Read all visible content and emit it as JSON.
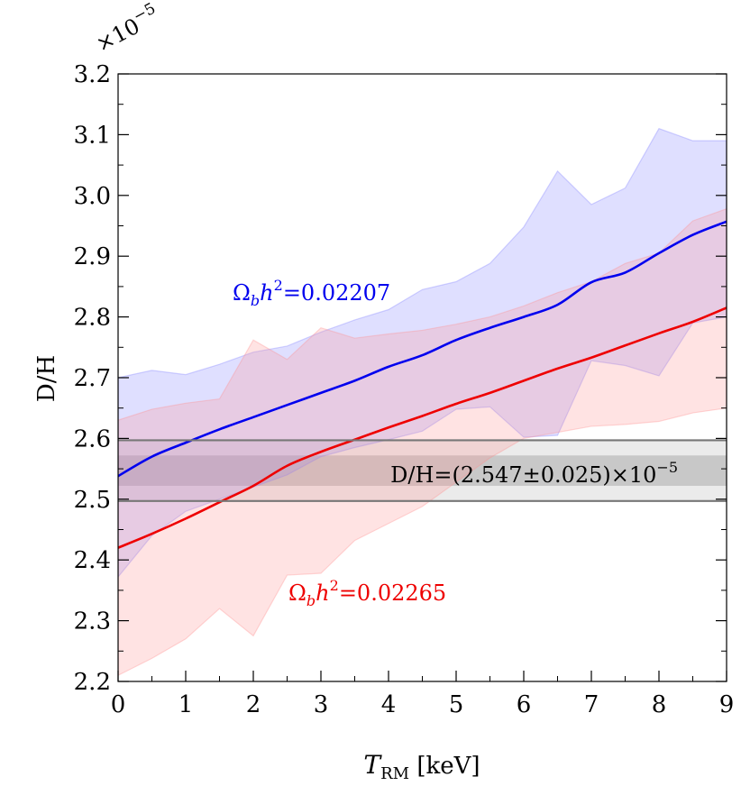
{
  "chart_data": {
    "type": "line",
    "title": "",
    "xlabel": {
      "main": "T",
      "sub": "RM",
      "unit": " [keV]"
    },
    "ylabel": "D/H",
    "multiplier": {
      "base": "×10",
      "exp": "−5"
    },
    "xlim": [
      0,
      9
    ],
    "ylim": [
      2.2,
      3.2
    ],
    "x_ticks": [
      0,
      1,
      2,
      3,
      4,
      5,
      6,
      7,
      8,
      9
    ],
    "x_tick_labels": [
      "0",
      "1",
      "2",
      "3",
      "4",
      "5",
      "6",
      "7",
      "8",
      "9"
    ],
    "y_ticks": [
      2.2,
      2.3,
      2.4,
      2.5,
      2.6,
      2.7,
      2.8,
      2.9,
      3.0,
      3.1,
      3.2
    ],
    "y_tick_labels": [
      "2.2",
      "2.3",
      "2.4",
      "2.5",
      "2.6",
      "2.7",
      "2.8",
      "2.9",
      "3.0",
      "3.1",
      "3.2"
    ],
    "series": [
      {
        "name": "Ω_b h²=0.02207",
        "label_prefix": "Ω",
        "label_sub": "b",
        "label_h": "h",
        "label_sup": "2",
        "label_value": "=0.02207",
        "color": "#0000ee",
        "band_color": "#8080ff",
        "x": [
          0,
          0.5,
          1,
          1.5,
          2,
          2.5,
          3,
          3.5,
          4,
          4.5,
          5,
          5.5,
          6,
          6.5,
          7,
          7.5,
          8,
          8.5,
          9
        ],
        "values": [
          2.538,
          2.57,
          2.593,
          2.615,
          2.635,
          2.655,
          2.675,
          2.695,
          2.718,
          2.737,
          2.762,
          2.782,
          2.8,
          2.82,
          2.857,
          2.873,
          2.905,
          2.935,
          2.957
        ],
        "upper": [
          2.7,
          2.712,
          2.705,
          2.722,
          2.742,
          2.752,
          2.775,
          2.795,
          2.812,
          2.845,
          2.858,
          2.888,
          2.948,
          3.04,
          2.985,
          3.012,
          3.11,
          3.09,
          3.09
        ],
        "lower": [
          2.372,
          2.44,
          2.48,
          2.5,
          2.52,
          2.54,
          2.57,
          2.585,
          2.598,
          2.612,
          2.648,
          2.652,
          2.602,
          2.605,
          2.728,
          2.72,
          2.703,
          2.79,
          2.8
        ]
      },
      {
        "name": "Ω_b h²=0.02265",
        "label_prefix": "Ω",
        "label_sub": "b",
        "label_h": "h",
        "label_sup": "2",
        "label_value": "=0.02265",
        "color": "#ee0000",
        "band_color": "#ff9090",
        "x": [
          0,
          0.5,
          1,
          1.5,
          2,
          2.5,
          3,
          3.5,
          4,
          4.5,
          5,
          5.5,
          6,
          6.5,
          7,
          7.5,
          8,
          8.5,
          9
        ],
        "values": [
          2.42,
          2.443,
          2.468,
          2.495,
          2.522,
          2.555,
          2.578,
          2.598,
          2.618,
          2.637,
          2.657,
          2.675,
          2.695,
          2.715,
          2.733,
          2.753,
          2.773,
          2.792,
          2.815
        ],
        "upper": [
          2.63,
          2.648,
          2.658,
          2.665,
          2.762,
          2.73,
          2.782,
          2.765,
          2.772,
          2.778,
          2.788,
          2.8,
          2.818,
          2.84,
          2.858,
          2.888,
          2.905,
          2.958,
          2.978
        ],
        "lower": [
          2.21,
          2.238,
          2.27,
          2.32,
          2.275,
          2.375,
          2.378,
          2.432,
          2.46,
          2.488,
          2.528,
          2.568,
          2.6,
          2.61,
          2.62,
          2.623,
          2.628,
          2.642,
          2.65
        ]
      }
    ],
    "reference": {
      "label_text": "D/H=(2.547±0.025)×10",
      "label_exp": "−5",
      "center": 2.547,
      "inner_low": 2.522,
      "inner_high": 2.572,
      "outer_low": 2.497,
      "outer_high": 2.597,
      "line_color": "#777777",
      "outer_fill": "#ebebeb",
      "inner_fill": "#c8c8c8"
    }
  }
}
